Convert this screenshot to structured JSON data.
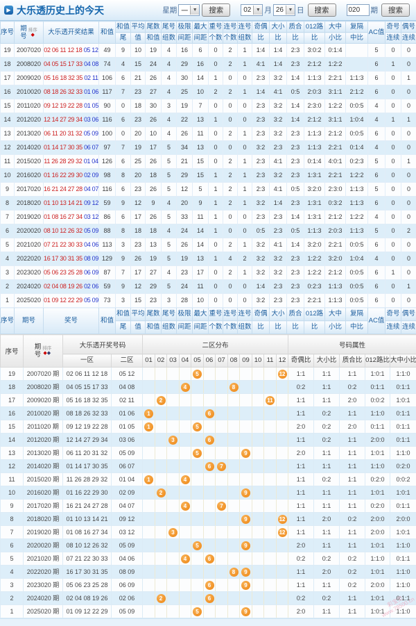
{
  "header": {
    "title": "大乐透历史上的今天",
    "week_label": "星期",
    "week_value": "一",
    "search_label": "搜索",
    "month_value": "02",
    "month_label": "月",
    "day_value": "26",
    "day_label": "日",
    "issue_value": "020",
    "issue_label": "期"
  },
  "sort_label": "排序",
  "table1": {
    "columns": [
      {
        "top": "序号"
      },
      {
        "top": "期",
        "bottom": "号",
        "stack": true,
        "sort": 1
      },
      {
        "top": "大乐透开奖结果"
      },
      {
        "top": "和值"
      },
      {
        "top": "和值",
        "bottom": "尾"
      },
      {
        "top": "平均",
        "bottom": "值"
      },
      {
        "top": "尾数",
        "bottom": "和值"
      },
      {
        "top": "尾号",
        "bottom": "组数"
      },
      {
        "top": "极限",
        "bottom": "间距"
      },
      {
        "top": "最大",
        "bottom": "间距"
      },
      {
        "top": "重号",
        "bottom": "个数"
      },
      {
        "top": "连号",
        "bottom": "个数"
      },
      {
        "top": "连号",
        "bottom": "组数"
      },
      {
        "top": "奇偶",
        "bottom": "比"
      },
      {
        "top": "大小",
        "bottom": "比"
      },
      {
        "top": "质合",
        "bottom": "比"
      },
      {
        "top": "012路",
        "bottom": "比"
      },
      {
        "top": "大中",
        "bottom": "小比"
      },
      {
        "top": "复隔",
        "bottom": "中比"
      },
      {
        "top": "AC值"
      },
      {
        "top": "奇号",
        "bottom": "连续"
      },
      {
        "top": "偶号",
        "bottom": "连续"
      }
    ],
    "footer_columns": [
      {
        "top": "序号"
      },
      {
        "top": "期号"
      },
      {
        "top": "奖号"
      },
      {
        "top": "和值"
      },
      {
        "top": "和值",
        "bottom": "尾"
      },
      {
        "top": "平均",
        "bottom": "值"
      },
      {
        "top": "尾数",
        "bottom": "和值"
      },
      {
        "top": "尾号",
        "bottom": "组数"
      },
      {
        "top": "极限",
        "bottom": "间距"
      },
      {
        "top": "最大",
        "bottom": "间距"
      },
      {
        "top": "重号",
        "bottom": "个数"
      },
      {
        "top": "连号",
        "bottom": "个数"
      },
      {
        "top": "连号",
        "bottom": "组数"
      },
      {
        "top": "奇偶",
        "bottom": "比"
      },
      {
        "top": "大小",
        "bottom": "比"
      },
      {
        "top": "质合",
        "bottom": "比"
      },
      {
        "top": "012路",
        "bottom": "比"
      },
      {
        "top": "大中",
        "bottom": "小比"
      },
      {
        "top": "复隔",
        "bottom": "中比"
      },
      {
        "top": "AC值"
      },
      {
        "top": "奇号",
        "bottom": "连续"
      },
      {
        "top": "偶号",
        "bottom": "连续"
      }
    ],
    "rows": [
      {
        "seq": "19",
        "issue": "2007020",
        "front": "02 06 11 12 18",
        "back": "05 12",
        "vals": [
          "49",
          "9",
          "10",
          "19",
          "4",
          "16",
          "6",
          "0",
          "2",
          "1",
          "1:4",
          "1:4",
          "2:3",
          "3:0:2",
          "0:1:4",
          "",
          "5",
          "0",
          "0"
        ]
      },
      {
        "seq": "18",
        "issue": "2008020",
        "front": "04 05 15 17 33",
        "back": "04 08",
        "vals": [
          "74",
          "4",
          "15",
          "24",
          "4",
          "29",
          "16",
          "0",
          "2",
          "1",
          "4:1",
          "1:4",
          "2:3",
          "2:1:2",
          "1:2:2",
          "",
          "6",
          "1",
          "0"
        ]
      },
      {
        "seq": "17",
        "issue": "2009020",
        "front": "05 16 18 32 35",
        "back": "02 11",
        "vals": [
          "106",
          "6",
          "21",
          "26",
          "4",
          "30",
          "14",
          "1",
          "0",
          "0",
          "2:3",
          "3:2",
          "1:4",
          "1:1:3",
          "2:2:1",
          "1:1:3",
          "6",
          "0",
          "1"
        ]
      },
      {
        "seq": "16",
        "issue": "2010020",
        "front": "08 18 26 32 33",
        "back": "01 06",
        "vals": [
          "117",
          "7",
          "23",
          "27",
          "4",
          "25",
          "10",
          "2",
          "2",
          "1",
          "1:4",
          "4:1",
          "0:5",
          "2:0:3",
          "3:1:1",
          "2:1:2",
          "6",
          "0",
          "0"
        ]
      },
      {
        "seq": "15",
        "issue": "2011020",
        "front": "09 12 19 22 28",
        "back": "01 05",
        "vals": [
          "90",
          "0",
          "18",
          "30",
          "3",
          "19",
          "7",
          "0",
          "0",
          "0",
          "2:3",
          "3:2",
          "1:4",
          "2:3:0",
          "1:2:2",
          "0:0:5",
          "4",
          "0",
          "0"
        ]
      },
      {
        "seq": "14",
        "issue": "2012020",
        "front": "12 14 27 29 34",
        "back": "03 06",
        "vals": [
          "116",
          "6",
          "23",
          "26",
          "4",
          "22",
          "13",
          "1",
          "0",
          "0",
          "2:3",
          "3:2",
          "1:4",
          "2:1:2",
          "3:1:1",
          "1:0:4",
          "4",
          "1",
          "1"
        ]
      },
      {
        "seq": "13",
        "issue": "2013020",
        "front": "06 11 20 31 32",
        "back": "05 09",
        "vals": [
          "100",
          "0",
          "20",
          "10",
          "4",
          "26",
          "11",
          "0",
          "2",
          "1",
          "2:3",
          "3:2",
          "2:3",
          "1:1:3",
          "2:1:2",
          "0:0:5",
          "6",
          "0",
          "0"
        ]
      },
      {
        "seq": "12",
        "issue": "2014020",
        "front": "01 14 17 30 35",
        "back": "06 07",
        "vals": [
          "97",
          "7",
          "19",
          "17",
          "5",
          "34",
          "13",
          "0",
          "0",
          "0",
          "3:2",
          "2:3",
          "2:3",
          "1:1:3",
          "2:2:1",
          "0:1:4",
          "4",
          "0",
          "0"
        ]
      },
      {
        "seq": "11",
        "issue": "2015020",
        "front": "11 26 28 29 32",
        "back": "01 04",
        "vals": [
          "126",
          "6",
          "25",
          "26",
          "5",
          "21",
          "15",
          "0",
          "2",
          "1",
          "2:3",
          "4:1",
          "2:3",
          "0:1:4",
          "4:0:1",
          "0:2:3",
          "5",
          "0",
          "1"
        ]
      },
      {
        "seq": "10",
        "issue": "2016020",
        "front": "01 16 22 29 30",
        "back": "02 09",
        "vals": [
          "98",
          "8",
          "20",
          "18",
          "5",
          "29",
          "15",
          "1",
          "2",
          "1",
          "2:3",
          "3:2",
          "2:3",
          "1:3:1",
          "2:2:1",
          "1:2:2",
          "6",
          "0",
          "0"
        ]
      },
      {
        "seq": "9",
        "issue": "2017020",
        "front": "16 21 24 27 28",
        "back": "04 07",
        "vals": [
          "116",
          "6",
          "23",
          "26",
          "5",
          "12",
          "5",
          "1",
          "2",
          "1",
          "2:3",
          "4:1",
          "0:5",
          "3:2:0",
          "2:3:0",
          "1:1:3",
          "5",
          "0",
          "0"
        ]
      },
      {
        "seq": "8",
        "issue": "2018020",
        "front": "01 10 13 14 21",
        "back": "09 12",
        "vals": [
          "59",
          "9",
          "12",
          "9",
          "4",
          "20",
          "9",
          "1",
          "2",
          "1",
          "3:2",
          "1:4",
          "2:3",
          "1:3:1",
          "0:3:2",
          "1:1:3",
          "6",
          "0",
          "0"
        ]
      },
      {
        "seq": "7",
        "issue": "2019020",
        "front": "01 08 16 27 34",
        "back": "03 12",
        "vals": [
          "86",
          "6",
          "17",
          "26",
          "5",
          "33",
          "11",
          "1",
          "0",
          "0",
          "2:3",
          "2:3",
          "1:4",
          "1:3:1",
          "2:1:2",
          "1:2:2",
          "4",
          "0",
          "0"
        ]
      },
      {
        "seq": "6",
        "issue": "2020020",
        "front": "08 10 12 26 32",
        "back": "05 09",
        "vals": [
          "88",
          "8",
          "18",
          "18",
          "4",
          "24",
          "14",
          "1",
          "0",
          "0",
          "0:5",
          "2:3",
          "0:5",
          "1:1:3",
          "2:0:3",
          "1:1:3",
          "5",
          "0",
          "2"
        ]
      },
      {
        "seq": "5",
        "issue": "2021020",
        "front": "07 21 22 30 33",
        "back": "04 06",
        "vals": [
          "113",
          "3",
          "23",
          "13",
          "5",
          "26",
          "14",
          "0",
          "2",
          "1",
          "3:2",
          "4:1",
          "1:4",
          "3:2:0",
          "2:2:1",
          "0:0:5",
          "6",
          "0",
          "0"
        ]
      },
      {
        "seq": "4",
        "issue": "2022020",
        "front": "16 17 30 31 35",
        "back": "08 09",
        "vals": [
          "129",
          "9",
          "26",
          "19",
          "5",
          "19",
          "13",
          "1",
          "4",
          "2",
          "3:2",
          "3:2",
          "2:3",
          "1:2:2",
          "3:2:0",
          "1:0:4",
          "4",
          "0",
          "0"
        ]
      },
      {
        "seq": "3",
        "issue": "2023020",
        "front": "05 06 23 25 28",
        "back": "06 09",
        "vals": [
          "87",
          "7",
          "17",
          "27",
          "4",
          "23",
          "17",
          "0",
          "2",
          "1",
          "3:2",
          "3:2",
          "2:3",
          "1:2:2",
          "2:1:2",
          "0:0:5",
          "6",
          "1",
          "0"
        ]
      },
      {
        "seq": "2",
        "issue": "2024020",
        "front": "02 04 08 19 26",
        "back": "02 06",
        "vals": [
          "59",
          "9",
          "12",
          "29",
          "5",
          "24",
          "11",
          "0",
          "0",
          "0",
          "1:4",
          "2:3",
          "2:3",
          "0:2:3",
          "1:1:3",
          "0:0:5",
          "6",
          "0",
          "1"
        ]
      },
      {
        "seq": "1",
        "issue": "2025020",
        "front": "01 09 12 22 29",
        "back": "05 09",
        "vals": [
          "73",
          "3",
          "15",
          "23",
          "3",
          "28",
          "10",
          "0",
          "0",
          "0",
          "3:2",
          "2:3",
          "2:3",
          "2:2:1",
          "1:1:3",
          "0:0:5",
          "6",
          "0",
          "0"
        ]
      }
    ]
  },
  "table2": {
    "head": {
      "seq": "序号",
      "issue_top": "期",
      "issue_bottom": "号",
      "result": "大乐透开奖号码",
      "zone_dist": "二区分布",
      "attrs": "号码属性",
      "zone1": "一区",
      "zone2": "二区",
      "nums": [
        "01",
        "02",
        "03",
        "04",
        "05",
        "06",
        "07",
        "08",
        "09",
        "10",
        "11",
        "12"
      ],
      "ratio_heads": [
        "奇偶比",
        "大小比",
        "质合比",
        "012路比",
        "大中小比"
      ]
    },
    "rows": [
      {
        "seq": "19",
        "issue": "2007020 期",
        "zone1": "02 06 11 12 18",
        "zone2": "05 12",
        "balls": [
          5,
          12
        ],
        "ratios": [
          "1:1",
          "1:1",
          "1:1",
          "1:0:1",
          "1:1:0"
        ]
      },
      {
        "seq": "18",
        "issue": "2008020 期",
        "zone1": "04 05 15 17 33",
        "zone2": "04 08",
        "balls": [
          4,
          8
        ],
        "ratios": [
          "0:2",
          "1:1",
          "0:2",
          "0:1:1",
          "0:1:1"
        ]
      },
      {
        "seq": "17",
        "issue": "2009020 期",
        "zone1": "05 16 18 32 35",
        "zone2": "02 11",
        "balls": [
          2,
          11
        ],
        "ratios": [
          "1:1",
          "1:1",
          "2:0",
          "0:0:2",
          "1:0:1"
        ]
      },
      {
        "seq": "16",
        "issue": "2010020 期",
        "zone1": "08 18 26 32 33",
        "zone2": "01 06",
        "balls": [
          1,
          6
        ],
        "ratios": [
          "1:1",
          "0:2",
          "1:1",
          "1:1:0",
          "0:1:1"
        ]
      },
      {
        "seq": "15",
        "issue": "2011020 期",
        "zone1": "09 12 19 22 28",
        "zone2": "01 05",
        "balls": [
          1,
          5
        ],
        "ratios": [
          "2:0",
          "0:2",
          "2:0",
          "0:1:1",
          "0:1:1"
        ]
      },
      {
        "seq": "14",
        "issue": "2012020 期",
        "zone1": "12 14 27 29 34",
        "zone2": "03 06",
        "balls": [
          3,
          6
        ],
        "ratios": [
          "1:1",
          "0:2",
          "1:1",
          "2:0:0",
          "0:1:1"
        ]
      },
      {
        "seq": "13",
        "issue": "2013020 期",
        "zone1": "06 11 20 31 32",
        "zone2": "05 09",
        "balls": [
          5,
          9
        ],
        "ratios": [
          "2:0",
          "1:1",
          "1:1",
          "1:0:1",
          "1:1:0"
        ]
      },
      {
        "seq": "12",
        "issue": "2014020 期",
        "zone1": "01 14 17 30 35",
        "zone2": "06 07",
        "balls": [
          6,
          7
        ],
        "ratios": [
          "1:1",
          "1:1",
          "1:1",
          "1:1:0",
          "0:2:0"
        ]
      },
      {
        "seq": "11",
        "issue": "2015020 期",
        "zone1": "11 26 28 29 32",
        "zone2": "01 04",
        "balls": [
          1,
          4
        ],
        "ratios": [
          "1:1",
          "0:2",
          "1:1",
          "0:2:0",
          "0:0:2"
        ]
      },
      {
        "seq": "10",
        "issue": "2016020 期",
        "zone1": "01 16 22 29 30",
        "zone2": "02 09",
        "balls": [
          2,
          9
        ],
        "ratios": [
          "1:1",
          "1:1",
          "1:1",
          "1:0:1",
          "1:0:1"
        ]
      },
      {
        "seq": "9",
        "issue": "2017020 期",
        "zone1": "16 21 24 27 28",
        "zone2": "04 07",
        "balls": [
          4,
          7
        ],
        "ratios": [
          "1:1",
          "1:1",
          "1:1",
          "0:2:0",
          "0:1:1"
        ]
      },
      {
        "seq": "8",
        "issue": "2018020 期",
        "zone1": "01 10 13 14 21",
        "zone2": "09 12",
        "balls": [
          9,
          12
        ],
        "ratios": [
          "1:1",
          "2:0",
          "0:2",
          "2:0:0",
          "2:0:0"
        ]
      },
      {
        "seq": "7",
        "issue": "2019020 期",
        "zone1": "01 08 16 27 34",
        "zone2": "03 12",
        "balls": [
          3,
          12
        ],
        "ratios": [
          "1:1",
          "1:1",
          "1:1",
          "2:0:0",
          "1:0:1"
        ]
      },
      {
        "seq": "6",
        "issue": "2020020 期",
        "zone1": "08 10 12 26 32",
        "zone2": "05 09",
        "balls": [
          5,
          9
        ],
        "ratios": [
          "2:0",
          "1:1",
          "1:1",
          "1:0:1",
          "1:1:0"
        ]
      },
      {
        "seq": "5",
        "issue": "2021020 期",
        "zone1": "07 21 22 30 33",
        "zone2": "04 06",
        "balls": [
          4,
          6
        ],
        "ratios": [
          "0:2",
          "0:2",
          "0:2",
          "1:1:0",
          "0:1:1"
        ]
      },
      {
        "seq": "4",
        "issue": "2022020 期",
        "zone1": "16 17 30 31 35",
        "zone2": "08 09",
        "balls": [
          8,
          9
        ],
        "ratios": [
          "1:1",
          "2:0",
          "0:2",
          "1:0:1",
          "1:1:0"
        ]
      },
      {
        "seq": "3",
        "issue": "2023020 期",
        "zone1": "05 06 23 25 28",
        "zone2": "06 09",
        "balls": [
          6,
          9
        ],
        "ratios": [
          "1:1",
          "1:1",
          "0:2",
          "2:0:0",
          "1:1:0"
        ]
      },
      {
        "seq": "2",
        "issue": "2024020 期",
        "zone1": "02 04 08 19 26",
        "zone2": "02 06",
        "balls": [
          2,
          6
        ],
        "ratios": [
          "0:2",
          "0:2",
          "1:1",
          "1:0:1",
          "0:1:1"
        ]
      },
      {
        "seq": "1",
        "issue": "2025020 期",
        "zone1": "01 09 12 22 29",
        "zone2": "05 09",
        "balls": [
          5,
          9
        ],
        "ratios": [
          "2:0",
          "1:1",
          "1:1",
          "1:0:1",
          "1:1:0"
        ]
      }
    ]
  },
  "watermark": {
    "line1": "彩宝贝",
    "line2": "www.78500.cn"
  },
  "colors": {
    "accent_blue": "#1566ad",
    "front_red": "#cc2222",
    "back_blue": "#2334cc",
    "ball_orange": "#ee8512",
    "grid_yellow": "#fbfadf",
    "stripe_blue": "#ddeef9"
  }
}
